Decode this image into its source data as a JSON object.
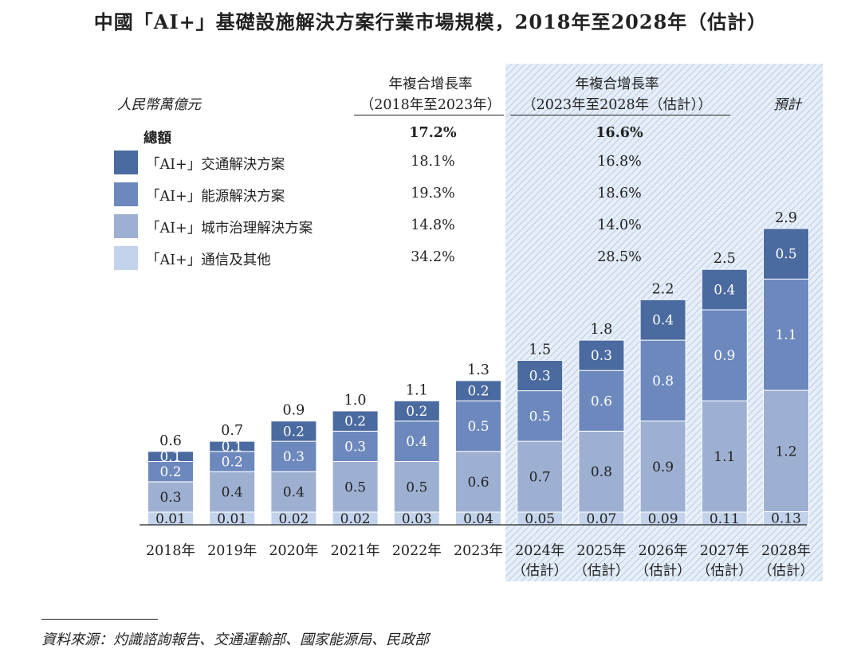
{
  "title": "中國「AI+」基礎設施解決方案行業市場規模，2018年至2028年（估計）",
  "unit_label": "人民幣萬億元",
  "forecast_label": "預計",
  "cagr_header_1": [
    "年複合增長率",
    "（2018年至2023年）"
  ],
  "cagr_header_2": [
    "年複合增長率",
    "（2023年至2028年（估計））"
  ],
  "total_row": {
    "label": "總額",
    "cagr1": "17.2%",
    "cagr2": "16.6%"
  },
  "legend": [
    {
      "label": "「AI+」交通解決方案",
      "cagr1": "18.1%",
      "cagr2": "16.8%",
      "color": "#4a6aa0"
    },
    {
      "label": "「AI+」能源解決方案",
      "cagr1": "19.3%",
      "cagr2": "18.6%",
      "color": "#6d88bd"
    },
    {
      "label": "「AI+」城市治理解決方案",
      "cagr1": "14.8%",
      "cagr2": "14.0%",
      "color": "#9eb0d2"
    },
    {
      "label": "「AI+」通信及其他",
      "cagr1": "34.2%",
      "cagr2": "28.5%",
      "color": "#c3d3eb"
    }
  ],
  "source": "資料來源：灼識諮詢報告、交通運輸部、國家能源局、民政部",
  "chart_data": {
    "type": "bar",
    "stacked": true,
    "categories": [
      "2018年",
      "2019年",
      "2020年",
      "2021年",
      "2022年",
      "2023年",
      "2024年\n（估計）",
      "2025年\n（估計）",
      "2026年\n（估計）",
      "2027年\n（估計）",
      "2028年\n（估計）"
    ],
    "forecast_from_index": 6,
    "series": [
      {
        "name": "「AI+」通信及其他",
        "values": [
          0.01,
          0.01,
          0.02,
          0.02,
          0.03,
          0.04,
          0.05,
          0.07,
          0.09,
          0.11,
          0.13
        ],
        "labels": [
          "0.01",
          "0.01",
          "0.02",
          "0.02",
          "0.03",
          "0.04",
          "0.05",
          "0.07",
          "0.09",
          "0.11",
          "0.13"
        ]
      },
      {
        "name": "「AI+」城市治理解決方案",
        "values": [
          0.3,
          0.4,
          0.4,
          0.5,
          0.5,
          0.6,
          0.7,
          0.8,
          0.9,
          1.1,
          1.2
        ],
        "labels": [
          "0.3",
          "0.4",
          "0.4",
          "0.5",
          "0.5",
          "0.6",
          "0.7",
          "0.8",
          "0.9",
          "1.1",
          "1.2"
        ]
      },
      {
        "name": "「AI+」能源解決方案",
        "values": [
          0.2,
          0.2,
          0.3,
          0.3,
          0.4,
          0.5,
          0.5,
          0.6,
          0.8,
          0.9,
          1.1
        ],
        "labels": [
          "0.2",
          "0.2",
          "0.3",
          "0.3",
          "0.4",
          "0.5",
          "0.5",
          "0.6",
          "0.8",
          "0.9",
          "1.1"
        ]
      },
      {
        "name": "「AI+」交通解決方案",
        "values": [
          0.1,
          0.1,
          0.2,
          0.2,
          0.2,
          0.2,
          0.3,
          0.3,
          0.4,
          0.4,
          0.5
        ],
        "labels": [
          "0.1",
          "0.1",
          "0.2",
          "0.2",
          "0.2",
          "0.2",
          "0.3",
          "0.3",
          "0.4",
          "0.4",
          "0.5"
        ]
      }
    ],
    "totals": [
      "0.6",
      "0.7",
      "0.9",
      "1.0",
      "1.1",
      "1.3",
      "1.5",
      "1.8",
      "2.2",
      "2.5",
      "2.9"
    ],
    "ylabel": "人民幣萬億元",
    "xlabel": ""
  }
}
